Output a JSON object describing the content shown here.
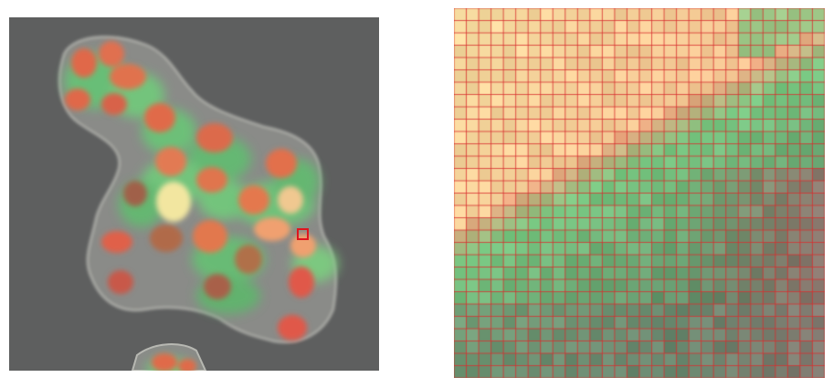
{
  "figure": {
    "left_image": {
      "description_icon": "fluorescence-micrograph"
    },
    "right_image": {
      "description_icon": "zoomed-pixel-grid"
    },
    "colors": {
      "background": "#5f6060",
      "cytoplasm_green": "#6fcf7a",
      "nucleus_red": "#e0684a",
      "nucleus_orange": "#f0a070",
      "highlight_yellow": "#f2e6a0",
      "grid_line": "#d83030",
      "roi_box": "#e0141e"
    }
  }
}
